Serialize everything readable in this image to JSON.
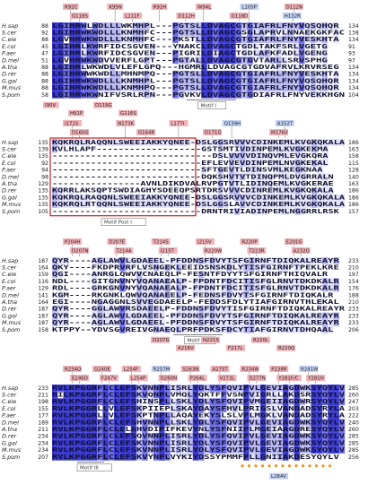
{
  "colors": {
    "conserved_dark": "#3a3ad0",
    "conserved_mid": "#6f6fe6",
    "conserved_light": "#b9b9f2",
    "conserved_pale": "#e2e2fb",
    "mutation_red": "#f3b3b8",
    "mutation_blue": "#c3d2f5",
    "motif_box": "#c0202a",
    "motif_label_border": "#777777",
    "orange_dot": "#e9932a"
  },
  "species": [
    "H.sap",
    "S.cer",
    "C.ele",
    "E.col",
    "P.aer",
    "D.mel",
    "A.tha",
    "D.rer",
    "G.gal",
    "M.mus",
    "S.pom"
  ],
  "blocks": [
    {
      "id": "block1",
      "start": [
        88,
        92,
        88,
        45,
        47,
        51,
        88,
        88,
        88,
        88,
        58
      ],
      "end": [
        134,
        138,
        134,
        91,
        93,
        97,
        134,
        134,
        134,
        134,
        104
      ],
      "rows": [
        "LGIHRWLWDLLLWKMHPL---PGTSLLDVAGCGTGIAFRLFNYVQSQHQR",
        "LGIHRWKWDLLLKNMHFC---PGTSLLDVAGCGSGLAPRVLNNAEKGKFAC",
        "LGVHRWKWDLLLKNMHFC---PKSTLLDVAGCGTGIAFRLFNYVESKHTA",
        "LGIHRLKWRFIDCSGVEN---YNAKCLDVAGCTGDLTAKFSRLVGETG",
        "LGIHRLKWRFIDCSGVEN---PIGRILDIAGCTGDLAFKFADLVGENG",
        "LGVHRWKWDVVERFLGPT---PGTALLDVAGCGTGVTARLLSRVSPHG",
        "LGIHRLWKWDLVLEFLGPQ---HGMRLLDVAGCGTGDVAFRVLKRVRSEG",
        "LGIHRWWKWDLLMHNMPQ---PGTSLLDVAGCGTGIAFRLFNYVESKHTA",
        "LGIHRWKWDLLLKNMHPL---PGTSLLDVAGCGTGIAFRLFNYVQSQHQR",
        "LGIHRWKWDLLLKNMHPQ---PGTSLLDVAGCGTGIAFRLFNYVQSQHQR",
        "LGIHRWKWNIFVSRLRPN---PGVKVLDVAGCGTGDIAFRLFNYVEKKHGN"
      ],
      "mutations_top": [
        {
          "label": "R92C",
          "color": "red"
        },
        {
          "label": "K95N",
          "color": "red"
        },
        {
          "label": "R92H",
          "color": "red"
        },
        {
          "label": "W94L",
          "color": "red"
        },
        {
          "label": "L105P",
          "color": "blue"
        },
        {
          "label": "D112N",
          "color": "red"
        },
        {
          "label": "G118S",
          "color": "red"
        },
        {
          "label": "L111F",
          "color": "red"
        },
        {
          "label": "D112H",
          "color": "red"
        },
        {
          "label": "G118D",
          "color": "red"
        },
        {
          "label": "H132R",
          "color": "blue"
        }
      ],
      "mutations_bottom": [
        {
          "label": "I90V",
          "color": "red"
        },
        {
          "label": "H91P",
          "color": "red"
        },
        {
          "label": "D119G",
          "color": "red"
        },
        {
          "label": "G116S",
          "color": "red"
        }
      ],
      "motif": "Motif I"
    },
    {
      "id": "block2",
      "start": [
        135,
        139,
        135,
        92,
        94,
        98,
        129,
        135,
        135,
        135,
        105
      ],
      "end": [
        186,
        163,
        158,
        115,
        128,
        140,
        163,
        186,
        186,
        186,
        157
      ],
      "rows": [
        "KQKRQLRAQQNLSWEEIAKKYQNEE-DSLGGSRVVVCDINKEMLKVGKQKALA",
        "KVLHLAPF-------------------GSTSMTIVDINPEMLKVGKEKMA",
        "-----------------------------DSLVVVVDINQVMLEVGKQRA",
        "---------------------------EFLEVVEVDINPEMLNVGKEKAL",
        "---------------------------SFTGEVTLDINSVMLKEGKNAA",
        "---------------------------DQKSHVTVTDINQPMLDVGRRALN",
        "----------------AVNLDIKDVALRVPGTVTLIDINQEMLKVGKERAE",
        "KQRRLAKSQPTSWDIAGHYSDEEQPSRTDRSVVVCDINREMLKVGKQKALA",
        "KQKRQLRAQQNLSWEEIAKKYQNEE-DSLGGSRVVVCDINKEMLKVGKQKALA",
        "KQKRQLRTQQNLSWEEIAKKYQNEE-DSLGGSLAVVCDINKEMLKVGKQKALA",
        "---------------------------DRNTRIVIADINPEMLNGGRRLRSK"
      ],
      "mutations_top": [
        {
          "label": "I172S",
          "color": "red"
        },
        {
          "label": "N173K",
          "color": "red"
        },
        {
          "label": "L177I",
          "color": "red"
        },
        {
          "label": "Q139H",
          "color": "blue"
        },
        {
          "label": "A152T",
          "color": "blue"
        },
        {
          "label": "D160G",
          "color": "red"
        },
        {
          "label": "G164R",
          "color": "red"
        },
        {
          "label": "D171G",
          "color": "red"
        },
        {
          "label": "M176V",
          "color": "red"
        }
      ],
      "motif": "Motif Post I"
    },
    {
      "id": "block3",
      "start": [
        187,
        164,
        159,
        116,
        129,
        141,
        164,
        187,
        187,
        187,
        158
      ],
      "end": [
        233,
        210,
        197,
        154,
        176,
        188,
        210,
        233,
        233,
        233,
        206
      ],
      "rows": [
        "QYR----AGLAWVLGDAEEL-PFDDNSFDVYTSFGIRNFTDIQKALREAYR",
        "QKY----FKDPRVRFLVSNGEKLEEIDSNSKDLYTISFGIRNFTPEKLKRE",
        "QGI----ANRGLQWVVCNAEQLP-FESNTFDYYTSFGIRNFTHIQVALR",
        "NDL----GITGNVNYVQANAEALP-FPDNTFDCITISFGLRNVTDKDKALR",
        "RDL----GRKGNVNYVQANAEALP-FPDNTFDCITISFGLRNVTDKDKALR",
        "KGM----RKGNKLQWVQANAEELP-FEDNSFDVYTSFGIRNFTDIQKALR",
        "EGI----NGAGGNLSVVEGDAEELP-FEDDSFDLYTIAFGIRNVTHLEKAL",
        "QYR----GGLAWVRSDAEELP-FDDNSFDVYTISFGIRNFTDIQKALREAYR",
        "QYR----AGLAWVLGDAEEL-PFDDNSFDVYTSFGIRNFTDIQKALREAYR",
        "QYR----AGLAWVLGDAEEL-PFDDNSFDVYTSFGIRNFTDIQKALREAYR",
        "KTPPY--YDVSGVREIVGNAEQLPRFPDKSFDCYTIAFGIRNVTDHQAAL"
      ],
      "mutations_top": [
        {
          "label": "P204H",
          "color": "red"
        },
        {
          "label": "D207E",
          "color": "red"
        },
        {
          "label": "T214S",
          "color": "red"
        },
        {
          "label": "I215V",
          "color": "red"
        },
        {
          "label": "R220P",
          "color": "red"
        },
        {
          "label": "E201G",
          "color": "red"
        },
        {
          "label": "D207N",
          "color": "red"
        },
        {
          "label": "T214A",
          "color": "red"
        },
        {
          "label": "I215T",
          "color": "red"
        },
        {
          "label": "R220W",
          "color": "red"
        },
        {
          "label": "T223R",
          "color": "red"
        },
        {
          "label": "A232G",
          "color": "red"
        }
      ],
      "mutations_bottom": [
        {
          "label": "D207G",
          "color": "red"
        },
        {
          "label": "A216V",
          "color": "red"
        },
        {
          "label": "N221S",
          "color": "red"
        },
        {
          "label": "F217L",
          "color": "red"
        },
        {
          "label": "R220L",
          "color": "red"
        },
        {
          "label": "R220Q",
          "color": "red"
        }
      ],
      "motif": "Motif II"
    },
    {
      "id": "block4",
      "start": [
        233,
        211,
        198,
        155,
        177,
        189,
        211,
        234,
        234,
        234,
        207
      ],
      "end": [
        285,
        260,
        247,
        203,
        222,
        240,
        260,
        285,
        285,
        285,
        256
      ],
      "rows": [
        "RVLKPGGRFLCLEFSKVNNPLISRLYDLYSFQVIPVLGEVIAGDWKSYQYLV",
        "RILKPGGRFLCLEFSKVQNPLVMQLYQKTFFVSNPVIGRLLAKDSRSYQYLV",
        "RVLKPGGRFLCLEFSHINSPLLSKLYDLYSFQVIPVMGEIIAGDWRSYQYLV",
        "RVLKPGGRLLVLEFSKPIIEPLSKAYDAYSFHVLPRIGSLVANDADSYRYLA",
        "RVLKPGGRLLVLEFSKPTNPLLAQAYEKYSLSLVPLMGKLVANDADSYRYLA",
        "RVLKPGGRFLCLEFSHVNNPLLSKLYDLYSFQVIPVLGEVIAGDWKSYQYLV",
        "RVLKPGGRFLCLELSHVDIPIFKEVYNLYSFNIIPLMGEIAAGDRESYQYLV",
        "RVLKPGGRFLCLEFSQVNNPLISRLYDLYSFQVIPVLGEVIAGDWKSYQYLV",
        "RVLKPGGRFLCLEFSKVNNPLISRLYDLYSFQVIPVLGEVIAGDWKSYQYLV",
        "RVLKPGGRFLCLEFSKVNNPLISRLYDLYSFQVIPVLGEVIAGDWKSYQYLV",
        "RVLKPGGRFLCLEFSKVYNPLVYKIYDSSYPMMFPLLGNIIAKDESYQYLV"
      ],
      "mutations_top": [
        {
          "label": "R234Q",
          "color": "red"
        },
        {
          "label": "G240E",
          "color": "red"
        },
        {
          "label": "L254F",
          "color": "red"
        },
        {
          "label": "R257M",
          "color": "blue"
        },
        {
          "label": "S263N",
          "color": "red"
        },
        {
          "label": "A275T",
          "color": "red"
        },
        {
          "label": "R234W",
          "color": "red"
        },
        {
          "label": "P238R",
          "color": "red"
        },
        {
          "label": "R241W",
          "color": "blue"
        },
        {
          "label": "E246D",
          "color": "red"
        },
        {
          "label": "F247V",
          "color": "red"
        },
        {
          "label": "L254P",
          "color": "red"
        },
        {
          "label": "D260N",
          "color": "red"
        },
        {
          "label": "P264L",
          "color": "red"
        },
        {
          "label": "V273L",
          "color": "red"
        },
        {
          "label": "D277N",
          "color": "red"
        },
        {
          "label": "Y281F/C",
          "color": "red"
        },
        {
          "label": "Y281H",
          "color": "red"
        }
      ],
      "mutations_bottom": [
        {
          "label": "L284V",
          "color": "blue"
        }
      ],
      "motif": "Motif III"
    }
  ]
}
